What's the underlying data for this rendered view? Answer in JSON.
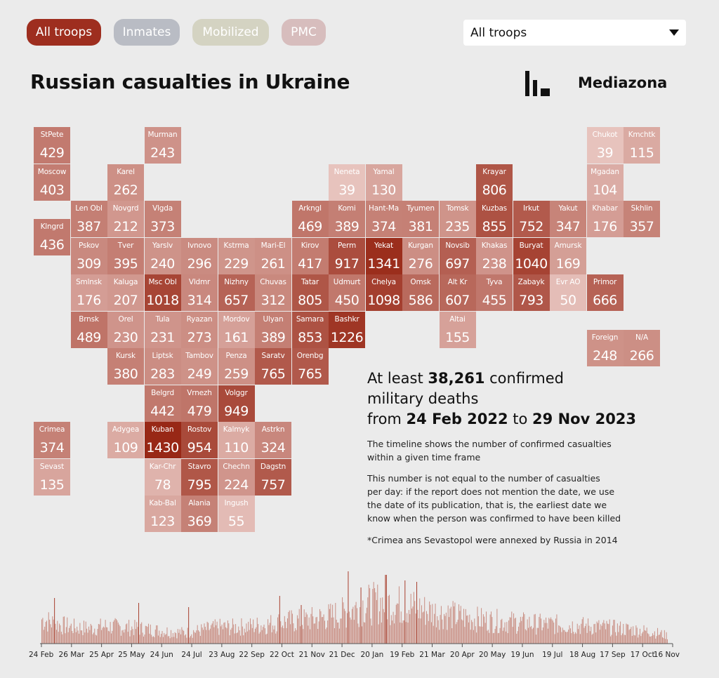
{
  "filters": {
    "buttons": [
      {
        "label": "All troops",
        "color": "#9e2e1f",
        "active": true
      },
      {
        "label": "Inmates",
        "color": "#b9bcc4",
        "active": false
      },
      {
        "label": "Mobilized",
        "color": "#d4d3c2",
        "active": false
      },
      {
        "label": "PMC",
        "color": "#d7bdbd",
        "active": false
      }
    ],
    "select_value": "All troops"
  },
  "header": {
    "title": "Russian casualties in Ukraine",
    "brand": "Mediazona"
  },
  "regions": [
    {
      "name": "StPete",
      "value": 429,
      "col": 0,
      "row": 0
    },
    {
      "name": "Moscow",
      "value": 403,
      "col": 0,
      "row": 1
    },
    {
      "name": "Klngrd",
      "value": 436,
      "col": 0,
      "row": 2.5
    },
    {
      "name": "Crimea",
      "value": 374,
      "col": 0,
      "row": 8
    },
    {
      "name": "Sevast",
      "value": 135,
      "col": 0,
      "row": 9
    },
    {
      "name": "Murman",
      "value": 243,
      "col": 3,
      "row": 0
    },
    {
      "name": "Karel",
      "value": 262,
      "col": 2,
      "row": 1
    },
    {
      "name": "Len Obl",
      "value": 387,
      "col": 1,
      "row": 2
    },
    {
      "name": "Novgrd",
      "value": 212,
      "col": 2,
      "row": 2
    },
    {
      "name": "Vlgda",
      "value": 373,
      "col": 3,
      "row": 2
    },
    {
      "name": "Pskov",
      "value": 309,
      "col": 1,
      "row": 3
    },
    {
      "name": "Tver",
      "value": 395,
      "col": 2,
      "row": 3
    },
    {
      "name": "Yarslv",
      "value": 240,
      "col": 3,
      "row": 3
    },
    {
      "name": "Ivnovo",
      "value": 296,
      "col": 4,
      "row": 3
    },
    {
      "name": "Kstrma",
      "value": 229,
      "col": 5,
      "row": 3
    },
    {
      "name": "Mari-El",
      "value": 261,
      "col": 6,
      "row": 3
    },
    {
      "name": "Smlnsk",
      "value": 176,
      "col": 1,
      "row": 4
    },
    {
      "name": "Kaluga",
      "value": 207,
      "col": 2,
      "row": 4
    },
    {
      "name": "Msc Obl",
      "value": 1018,
      "col": 3,
      "row": 4
    },
    {
      "name": "Vldmr",
      "value": 314,
      "col": 4,
      "row": 4
    },
    {
      "name": "Nizhny",
      "value": 657,
      "col": 5,
      "row": 4
    },
    {
      "name": "Chuvas",
      "value": 312,
      "col": 6,
      "row": 4
    },
    {
      "name": "Brnsk",
      "value": 489,
      "col": 1,
      "row": 5
    },
    {
      "name": "Orel",
      "value": 230,
      "col": 2,
      "row": 5
    },
    {
      "name": "Tula",
      "value": 231,
      "col": 3,
      "row": 5
    },
    {
      "name": "Ryazan",
      "value": 273,
      "col": 4,
      "row": 5
    },
    {
      "name": "Mordov",
      "value": 161,
      "col": 5,
      "row": 5
    },
    {
      "name": "Ulyan",
      "value": 389,
      "col": 6,
      "row": 5
    },
    {
      "name": "Kursk",
      "value": 380,
      "col": 2,
      "row": 6
    },
    {
      "name": "Liptsk",
      "value": 283,
      "col": 3,
      "row": 6
    },
    {
      "name": "Tambov",
      "value": 249,
      "col": 4,
      "row": 6
    },
    {
      "name": "Penza",
      "value": 259,
      "col": 5,
      "row": 6
    },
    {
      "name": "Saratv",
      "value": 765,
      "col": 6,
      "row": 6
    },
    {
      "name": "Orenbg",
      "value": 765,
      "col": 7,
      "row": 6
    },
    {
      "name": "Belgrd",
      "value": 442,
      "col": 3,
      "row": 7
    },
    {
      "name": "Vrnezh",
      "value": 479,
      "col": 4,
      "row": 7
    },
    {
      "name": "Volggr",
      "value": 949,
      "col": 5,
      "row": 7
    },
    {
      "name": "Adygea",
      "value": 109,
      "col": 2,
      "row": 8
    },
    {
      "name": "Kuban",
      "value": 1430,
      "col": 3,
      "row": 8
    },
    {
      "name": "Rostov",
      "value": 954,
      "col": 4,
      "row": 8
    },
    {
      "name": "Kalmyk",
      "value": 110,
      "col": 5,
      "row": 8
    },
    {
      "name": "Astrkn",
      "value": 324,
      "col": 6,
      "row": 8
    },
    {
      "name": "Kar-Chr",
      "value": 78,
      "col": 3,
      "row": 9
    },
    {
      "name": "Stavro",
      "value": 795,
      "col": 4,
      "row": 9
    },
    {
      "name": "Chechn",
      "value": 224,
      "col": 5,
      "row": 9
    },
    {
      "name": "Dagstn",
      "value": 757,
      "col": 6,
      "row": 9
    },
    {
      "name": "Kab-Bal",
      "value": 123,
      "col": 3,
      "row": 10
    },
    {
      "name": "Alania",
      "value": 369,
      "col": 4,
      "row": 10
    },
    {
      "name": "Ingush",
      "value": 55,
      "col": 5,
      "row": 10
    },
    {
      "name": "Kirov",
      "value": 417,
      "col": 7,
      "row": 3
    },
    {
      "name": "Tatar",
      "value": 805,
      "col": 7,
      "row": 4
    },
    {
      "name": "Samara",
      "value": 853,
      "col": 7,
      "row": 5
    },
    {
      "name": "Arkngl",
      "value": 469,
      "col": 7,
      "row": 2
    },
    {
      "name": "Komi",
      "value": 389,
      "col": 8,
      "row": 2
    },
    {
      "name": "Perm",
      "value": 917,
      "col": 8,
      "row": 3
    },
    {
      "name": "Udmurt",
      "value": 450,
      "col": 8,
      "row": 4
    },
    {
      "name": "Bashkr",
      "value": 1226,
      "col": 8,
      "row": 5
    },
    {
      "name": "Neneta",
      "value": 39,
      "col": 8,
      "row": 1
    },
    {
      "name": "Yamal",
      "value": 130,
      "col": 9,
      "row": 1
    },
    {
      "name": "Hant-Ma",
      "value": 374,
      "col": 9,
      "row": 2
    },
    {
      "name": "Yekat",
      "value": 1341,
      "col": 9,
      "row": 3
    },
    {
      "name": "Chelya",
      "value": 1098,
      "col": 9,
      "row": 4
    },
    {
      "name": "Tyumen",
      "value": 381,
      "col": 10,
      "row": 2
    },
    {
      "name": "Kurgan",
      "value": 276,
      "col": 10,
      "row": 3
    },
    {
      "name": "Omsk",
      "value": 586,
      "col": 10,
      "row": 4
    },
    {
      "name": "Tomsk",
      "value": 235,
      "col": 11,
      "row": 2
    },
    {
      "name": "Novsib",
      "value": 697,
      "col": 11,
      "row": 3
    },
    {
      "name": "Alt Kr",
      "value": 607,
      "col": 11,
      "row": 4
    },
    {
      "name": "Altai",
      "value": 155,
      "col": 11,
      "row": 5
    },
    {
      "name": "Krayar",
      "value": 806,
      "col": 12,
      "row": 1
    },
    {
      "name": "Kuzbas",
      "value": 855,
      "col": 12,
      "row": 2
    },
    {
      "name": "Khakas",
      "value": 238,
      "col": 12,
      "row": 3
    },
    {
      "name": "Tyva",
      "value": 455,
      "col": 12,
      "row": 4
    },
    {
      "name": "Irkut",
      "value": 752,
      "col": 13,
      "row": 2
    },
    {
      "name": "Buryat",
      "value": 1040,
      "col": 13,
      "row": 3
    },
    {
      "name": "Zabayk",
      "value": 793,
      "col": 13,
      "row": 4
    },
    {
      "name": "Yakut",
      "value": 347,
      "col": 14,
      "row": 2
    },
    {
      "name": "Amursk",
      "value": 169,
      "col": 14,
      "row": 3
    },
    {
      "name": "Evr AO",
      "value": 50,
      "col": 14,
      "row": 4
    },
    {
      "name": "Chukot",
      "value": 39,
      "col": 15,
      "row": 0
    },
    {
      "name": "Kmchtk",
      "value": 115,
      "col": 16,
      "row": 0
    },
    {
      "name": "Mgadan",
      "value": 104,
      "col": 15,
      "row": 1
    },
    {
      "name": "Khabar",
      "value": 176,
      "col": 15,
      "row": 2
    },
    {
      "name": "Skhlin",
      "value": 357,
      "col": 16,
      "row": 2
    },
    {
      "name": "Primor",
      "value": 666,
      "col": 15,
      "row": 4
    },
    {
      "name": "Foreign",
      "value": 248,
      "col": 15,
      "row": 5.5
    },
    {
      "name": "N/A",
      "value": 266,
      "col": 16,
      "row": 5.5
    }
  ],
  "summary": {
    "line1_pre": "At least ",
    "total": "38,261",
    "line1_post": " confirmed",
    "line2": "military deaths",
    "line3_pre": "from ",
    "date_from": "24 Feb 2022",
    "line3_mid": " to ",
    "date_to": "29 Nov 2023"
  },
  "notes": {
    "timeline_1": "The timeline shows the number of confirmed casualties",
    "timeline_2": "within a given time frame",
    "perday_1": "This number is not equal to the number of casualties",
    "perday_2": "per day: if the report does not mention the date, we use",
    "perday_3": "the date of its publication, that is, the earliest date we",
    "perday_4": "know when the person was confirmed to have been killed",
    "crimea": "*Crimea ans Sevastopol were annexed by Russia in 2014"
  },
  "chart_data": {
    "type": "bar",
    "color": "#c98f84",
    "peak_color": "#a83f2e",
    "tick_labels": [
      "24 Feb",
      "26 Mar",
      "25 Apr",
      "25 May",
      "24 Jun",
      "24 Jul",
      "23 Aug",
      "22 Sep",
      "22 Oct",
      "21 Nov",
      "21 Dec",
      "20 Jan",
      "19 Feb",
      "21 Mar",
      "20 Apr",
      "20 May",
      "19 Jun",
      "19 Jul",
      "18 Aug",
      "17 Sep",
      "17 Oct",
      "16 Nov"
    ],
    "daily_envelope": [
      45,
      35,
      30,
      28,
      32,
      30,
      28,
      25,
      22,
      20,
      25,
      30,
      30,
      32,
      35,
      40,
      42,
      45,
      50,
      58,
      70,
      75,
      72,
      68,
      60,
      55,
      50,
      45,
      42,
      40,
      38,
      36,
      35,
      34,
      32,
      30,
      28,
      25,
      22,
      15
    ],
    "spikes": [
      [
        0.02,
        65
      ],
      [
        0.155,
        58
      ],
      [
        0.235,
        52
      ],
      [
        0.38,
        68
      ],
      [
        0.415,
        55
      ],
      [
        0.49,
        103
      ],
      [
        0.51,
        80
      ],
      [
        0.55,
        98
      ],
      [
        0.58,
        90
      ],
      [
        0.6,
        88
      ]
    ]
  }
}
